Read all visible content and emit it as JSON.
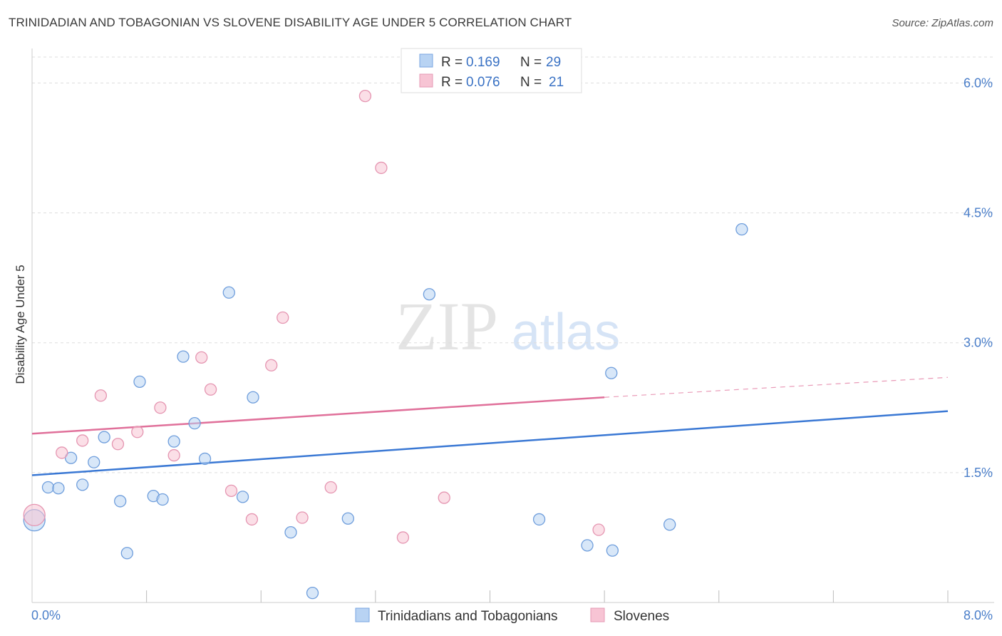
{
  "title": "TRINIDADIAN AND TOBAGONIAN VS SLOVENE DISABILITY AGE UNDER 5 CORRELATION CHART",
  "source": "Source: ZipAtlas.com",
  "watermark": {
    "zip": "ZIP",
    "atlas": "atlas"
  },
  "colors": {
    "blue": "#3a78d4",
    "blue_fill": "#b8d3f3",
    "pink": "#e0709a",
    "pink_fill": "#f7c4d4",
    "grid": "#dddddd",
    "tick_text": "#4a7ec9"
  },
  "legend": {
    "rows": [
      {
        "r_label": "R =",
        "r_value": "0.169",
        "n_label": "N =",
        "n_value": "29",
        "series": "blue"
      },
      {
        "r_label": "R =",
        "r_value": "0.076",
        "n_label": "N =",
        "n_value": "21",
        "series": "pink"
      }
    ]
  },
  "chart_data": {
    "type": "scatter",
    "title": "TRINIDADIAN AND TOBAGONIAN VS SLOVENE DISABILITY AGE UNDER 5 CORRELATION CHART",
    "xlabel": "",
    "ylabel": "Disability Age Under 5",
    "xlim": [
      0,
      8
    ],
    "ylim": [
      0,
      6.3
    ],
    "x_tick_labels": [
      "0.0%",
      "8.0%"
    ],
    "y_ticks": [
      1.5,
      3.0,
      4.5,
      6.0
    ],
    "y_tick_labels": [
      "1.5%",
      "3.0%",
      "4.5%",
      "6.0%"
    ],
    "grid": true,
    "legend_position": "bottom-center",
    "series": [
      {
        "name": "Trinidadians and Tobagonians",
        "color": "#3a78d4",
        "points": [
          [
            0.02,
            0.95,
            2
          ],
          [
            0.14,
            1.33,
            1
          ],
          [
            0.23,
            1.32,
            1
          ],
          [
            0.34,
            1.67,
            1
          ],
          [
            0.44,
            1.36,
            1
          ],
          [
            0.54,
            1.62,
            1
          ],
          [
            0.63,
            1.91,
            1
          ],
          [
            0.77,
            1.17,
            1
          ],
          [
            0.83,
            0.57,
            1
          ],
          [
            0.94,
            2.55,
            1
          ],
          [
            1.06,
            1.23,
            1
          ],
          [
            1.14,
            1.19,
            1
          ],
          [
            1.24,
            1.86,
            1
          ],
          [
            1.32,
            2.84,
            1
          ],
          [
            1.42,
            2.07,
            1
          ],
          [
            1.51,
            1.66,
            1
          ],
          [
            1.72,
            3.58,
            1
          ],
          [
            1.84,
            1.22,
            1
          ],
          [
            1.93,
            2.37,
            1
          ],
          [
            2.26,
            0.81,
            1
          ],
          [
            2.45,
            0.11,
            1
          ],
          [
            2.76,
            0.97,
            1
          ],
          [
            3.47,
            3.56,
            1
          ],
          [
            4.43,
            0.96,
            1
          ],
          [
            4.85,
            0.66,
            1
          ],
          [
            5.06,
            2.65,
            1
          ],
          [
            5.07,
            0.6,
            1
          ],
          [
            5.57,
            0.9,
            1
          ],
          [
            6.2,
            4.31,
            1
          ]
        ],
        "trend": {
          "x1": 0,
          "y1": 1.47,
          "x2": 8,
          "y2": 2.21
        }
      },
      {
        "name": "Slovenes",
        "color": "#e0709a",
        "points": [
          [
            0.02,
            1.01,
            2
          ],
          [
            0.26,
            1.73,
            1
          ],
          [
            0.44,
            1.87,
            1
          ],
          [
            0.6,
            2.39,
            1
          ],
          [
            0.75,
            1.83,
            1
          ],
          [
            0.92,
            1.97,
            1
          ],
          [
            1.12,
            2.25,
            1
          ],
          [
            1.24,
            1.7,
            1
          ],
          [
            1.48,
            2.83,
            1
          ],
          [
            1.56,
            2.46,
            1
          ],
          [
            1.74,
            1.29,
            1
          ],
          [
            1.92,
            0.96,
            1
          ],
          [
            2.09,
            2.74,
            1
          ],
          [
            2.19,
            3.29,
            1
          ],
          [
            2.36,
            0.98,
            1
          ],
          [
            2.61,
            1.33,
            1
          ],
          [
            2.91,
            5.85,
            1
          ],
          [
            3.05,
            5.02,
            1
          ],
          [
            3.24,
            0.75,
            1
          ],
          [
            3.6,
            1.21,
            1
          ],
          [
            4.95,
            0.84,
            1
          ]
        ],
        "trend": {
          "x1": 0,
          "y1": 1.95,
          "x2": 5.0,
          "y2": 2.37,
          "dash_to_x": 8,
          "dash_to_y": 2.6
        }
      }
    ]
  },
  "bottom_legend": {
    "items": [
      "Trinidadians and Tobagonians",
      "Slovenes"
    ]
  }
}
